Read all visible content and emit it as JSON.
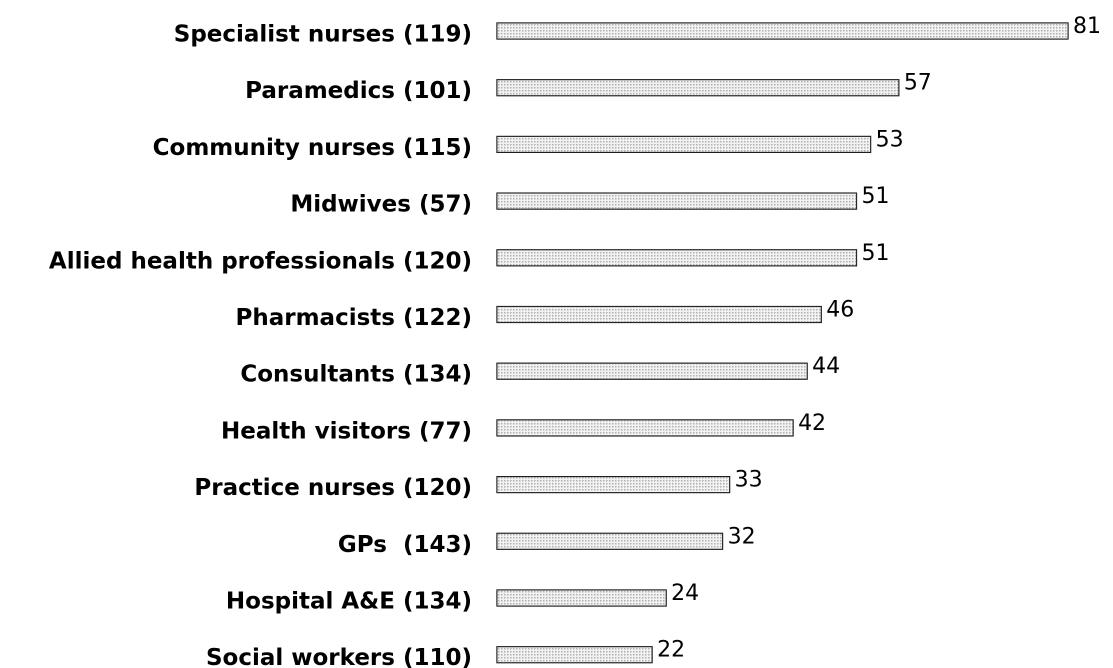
{
  "chart_data": {
    "type": "bar",
    "orientation": "horizontal",
    "categories": [
      "Specialist nurses (119)",
      "Paramedics (101)",
      "Community nurses (115)",
      "Midwives (57)",
      "Allied health professionals (120)",
      "Pharmacists (122)",
      "Consultants (134)",
      "Health visitors (77)",
      "Practice nurses (120)",
      "GPs  (143)",
      "Hospital A&E (134)",
      "Social workers (110)"
    ],
    "values": [
      81,
      57,
      53,
      51,
      51,
      46,
      44,
      42,
      33,
      32,
      24,
      22
    ],
    "color": "#d9d9d9"
  }
}
